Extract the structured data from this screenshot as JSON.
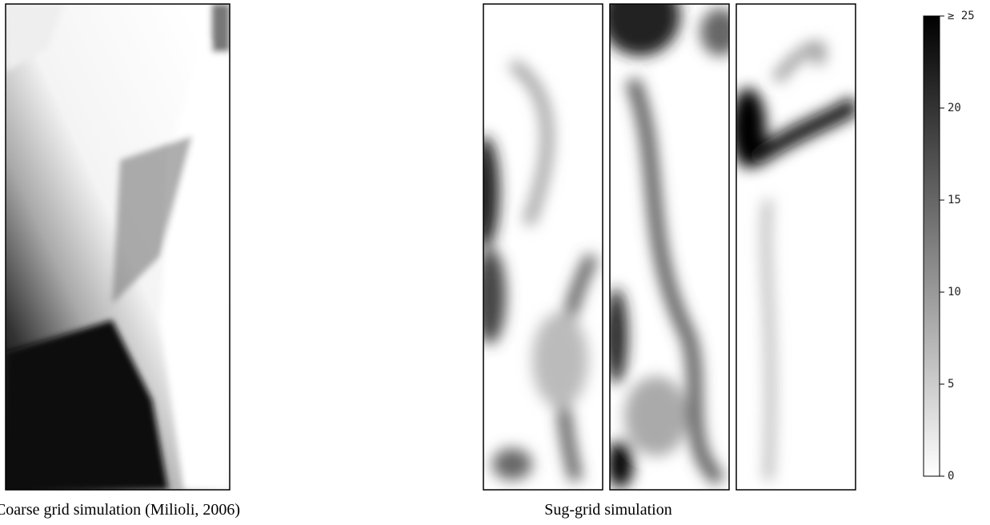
{
  "figure": {
    "captions": [
      "Coarse grid simulation (Milioli, 2006)",
      "Sug-grid simulation"
    ],
    "colorbar": {
      "lim": [
        0,
        25
      ],
      "ticks": [
        0,
        5,
        10,
        15,
        20,
        {
          "value": 25,
          "label": "≥ 25"
        }
      ]
    }
  }
}
